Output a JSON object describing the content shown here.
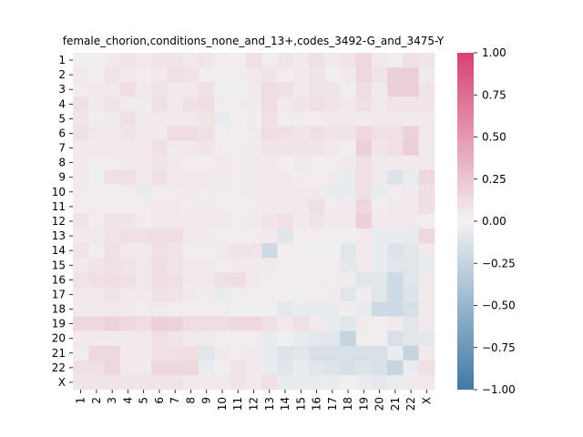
{
  "chart_data": {
    "type": "heatmap",
    "title": "female_chorion,conditions_none_and_13+,codes_3492-G_and_3475-Y",
    "xlabel": "",
    "ylabel": "",
    "x_labels": [
      "1",
      "2",
      "3",
      "4",
      "5",
      "6",
      "7",
      "8",
      "9",
      "10",
      "11",
      "12",
      "13",
      "14",
      "15",
      "16",
      "17",
      "18",
      "19",
      "20",
      "21",
      "22",
      "X"
    ],
    "y_labels": [
      "1",
      "2",
      "3",
      "4",
      "5",
      "6",
      "7",
      "8",
      "9",
      "10",
      "11",
      "12",
      "13",
      "14",
      "15",
      "16",
      "17",
      "18",
      "19",
      "20",
      "21",
      "22",
      "X"
    ],
    "color_range": [
      -1.0,
      1.0
    ],
    "colorbar_ticks": [
      "1.00",
      "0.75",
      "0.50",
      "0.25",
      "0.00",
      "−0.25",
      "−0.50",
      "−0.75",
      "−1.00"
    ],
    "colorbar_tick_values": [
      1.0,
      0.75,
      0.5,
      0.25,
      0.0,
      -0.25,
      -0.5,
      -0.75,
      -1.0
    ],
    "colors": {
      "positive": "#d6426e",
      "zero": "#f2f2f2",
      "negative": "#3f7aa5"
    },
    "values": [
      [
        0.02,
        0.02,
        0.05,
        0.08,
        0.05,
        0.08,
        0.08,
        0.05,
        0.08,
        0.03,
        0.03,
        0.1,
        0.03,
        0.08,
        0.05,
        0.1,
        0.05,
        0.08,
        0.15,
        0.05,
        0.02,
        0.1,
        0.08
      ],
      [
        0.05,
        0.03,
        0.08,
        0.05,
        0.03,
        0.05,
        0.1,
        0.08,
        0.03,
        0.02,
        0.03,
        0.05,
        0.08,
        0.03,
        0.05,
        0.08,
        0.02,
        0.05,
        0.15,
        0.08,
        0.2,
        0.2,
        0.05
      ],
      [
        0.03,
        0.05,
        0.05,
        0.12,
        0.05,
        0.08,
        0.05,
        0.05,
        0.1,
        -0.02,
        -0.02,
        0.05,
        0.12,
        0.1,
        0.05,
        0.08,
        0.08,
        0.03,
        0.12,
        0.05,
        0.2,
        0.2,
        0.08
      ],
      [
        0.1,
        0.05,
        0.08,
        0.05,
        0.03,
        0.1,
        0.05,
        0.1,
        0.12,
        0.03,
        0.03,
        0.05,
        0.12,
        0.05,
        0.08,
        0.1,
        0.08,
        0.05,
        0.1,
        0.05,
        0.08,
        0.08,
        0.08
      ],
      [
        0.08,
        0.03,
        0.05,
        0.1,
        0.05,
        0.05,
        0.05,
        0.05,
        0.08,
        -0.05,
        0.03,
        0.03,
        0.1,
        0.03,
        0.03,
        0.03,
        0.05,
        0.05,
        0.03,
        0.05,
        0.05,
        0.05,
        0.05
      ],
      [
        0.1,
        0.05,
        0.05,
        0.08,
        0.05,
        0.05,
        0.12,
        0.12,
        0.1,
        0.03,
        0.02,
        0.05,
        0.12,
        0.1,
        0.08,
        0.1,
        0.08,
        0.08,
        0.15,
        0.1,
        0.1,
        0.18,
        0.05
      ],
      [
        0.05,
        0.05,
        0.05,
        0.05,
        0.05,
        0.1,
        0.05,
        0.05,
        0.08,
        0.03,
        0.03,
        0.05,
        0.08,
        0.08,
        0.08,
        0.08,
        0.05,
        0.03,
        0.2,
        0.08,
        0.1,
        0.2,
        0.05
      ],
      [
        0.05,
        0.03,
        0.03,
        0.05,
        0.05,
        0.08,
        0.05,
        0.03,
        0.03,
        0.05,
        0.03,
        0.05,
        0.05,
        0.03,
        0.05,
        0.03,
        0.03,
        0.05,
        0.1,
        0.05,
        0.05,
        0.05,
        0.05
      ],
      [
        0.05,
        -0.02,
        0.1,
        0.1,
        0.05,
        0.1,
        0.05,
        0.05,
        0.05,
        0.05,
        0.03,
        0.05,
        0.05,
        0.05,
        0.03,
        0.03,
        0.05,
        -0.05,
        0.1,
        0.05,
        -0.12,
        -0.05,
        0.15
      ],
      [
        0.03,
        0.03,
        -0.02,
        0.03,
        -0.05,
        0.03,
        0.03,
        0.05,
        0.03,
        0.03,
        0.03,
        0.05,
        0.05,
        0.05,
        0.05,
        0.05,
        -0.05,
        -0.05,
        0.1,
        -0.05,
        0.03,
        0.05,
        0.1
      ],
      [
        0.03,
        0.03,
        0.03,
        0.03,
        0.03,
        0.05,
        0.05,
        0.03,
        0.05,
        0.03,
        0.03,
        0.03,
        0.05,
        0.05,
        0.05,
        0.1,
        0.03,
        0.05,
        0.15,
        0.03,
        0.05,
        0.05,
        0.1
      ],
      [
        0.08,
        0.03,
        0.08,
        0.08,
        0.03,
        0.05,
        0.05,
        0.05,
        0.05,
        0.05,
        0.03,
        0.05,
        0.08,
        0.1,
        0.05,
        0.08,
        0.05,
        0.05,
        0.2,
        0.05,
        0.05,
        0.05,
        0.03
      ],
      [
        0.05,
        0.05,
        0.08,
        0.1,
        0.1,
        0.12,
        0.12,
        0.05,
        0.05,
        0.03,
        0.03,
        0.03,
        0.05,
        -0.1,
        0.03,
        0.03,
        0.03,
        0.03,
        0.05,
        -0.05,
        -0.05,
        -0.05,
        0.15
      ],
      [
        0.08,
        0.03,
        0.1,
        0.05,
        0.05,
        0.1,
        0.08,
        0.03,
        0.03,
        0.05,
        0.08,
        0.08,
        -0.2,
        0.03,
        0.02,
        -0.02,
        -0.02,
        -0.1,
        0.05,
        -0.05,
        -0.12,
        -0.1,
        0.05
      ],
      [
        0.05,
        0.08,
        0.1,
        0.08,
        0.05,
        0.12,
        0.08,
        0.05,
        0.05,
        0.03,
        0.05,
        0.05,
        0.05,
        0.03,
        0.03,
        0.03,
        0.03,
        -0.08,
        0.05,
        -0.05,
        -0.1,
        -0.1,
        -0.05
      ],
      [
        0.08,
        0.1,
        0.12,
        0.1,
        0.05,
        0.12,
        0.1,
        0.05,
        0.05,
        0.1,
        0.12,
        0.05,
        0.03,
        0.03,
        0.03,
        0.03,
        0.03,
        0.03,
        -0.1,
        -0.1,
        -0.2,
        -0.1,
        0.05
      ],
      [
        0.05,
        0.05,
        0.08,
        0.05,
        0.05,
        0.1,
        0.08,
        0.05,
        0.03,
        -0.05,
        0.03,
        0.03,
        0.03,
        0.03,
        0.02,
        0.03,
        0.05,
        -0.1,
        0.03,
        -0.1,
        -0.2,
        -0.12,
        0.05
      ],
      [
        0.05,
        0.05,
        0.05,
        0.05,
        0.03,
        0.05,
        0.03,
        0.03,
        0.03,
        0.03,
        -0.02,
        -0.02,
        -0.02,
        -0.08,
        -0.05,
        -0.05,
        -0.05,
        0.03,
        -0.05,
        -0.2,
        -0.2,
        -0.15,
        0.05
      ],
      [
        0.15,
        0.15,
        0.18,
        0.15,
        0.12,
        0.2,
        0.18,
        0.12,
        0.12,
        0.12,
        0.15,
        0.15,
        0.1,
        0.05,
        0.1,
        0.05,
        -0.05,
        -0.1,
        0.05,
        0.03,
        0.05,
        -0.1,
        0.05
      ],
      [
        0.05,
        0.05,
        0.05,
        0.05,
        0.05,
        0.1,
        0.08,
        0.05,
        0.05,
        0.03,
        0.03,
        0.03,
        -0.05,
        -0.02,
        -0.05,
        -0.08,
        -0.1,
        -0.25,
        0.03,
        0.03,
        -0.15,
        -0.1,
        -0.08
      ],
      [
        0.03,
        0.15,
        0.15,
        0.05,
        0.05,
        0.1,
        0.1,
        0.12,
        -0.1,
        0.05,
        0.03,
        0.05,
        -0.05,
        -0.12,
        -0.1,
        -0.15,
        -0.15,
        -0.15,
        -0.15,
        -0.15,
        -0.05,
        -0.25,
        0.05
      ],
      [
        0.1,
        0.1,
        0.15,
        0.05,
        0.05,
        0.15,
        0.15,
        0.15,
        -0.05,
        0.03,
        0.08,
        0.05,
        -0.05,
        -0.1,
        -0.05,
        -0.1,
        -0.12,
        -0.15,
        -0.12,
        -0.15,
        -0.25,
        -0.05,
        0.1
      ],
      [
        0.08,
        0.08,
        0.08,
        0.08,
        0.08,
        0.08,
        0.08,
        0.05,
        0.05,
        0.05,
        0.08,
        0.05,
        0.1,
        -0.05,
        -0.05,
        -0.05,
        -0.05,
        -0.02,
        -0.05,
        -0.08,
        -0.05,
        0.05,
        0.05
      ]
    ]
  }
}
